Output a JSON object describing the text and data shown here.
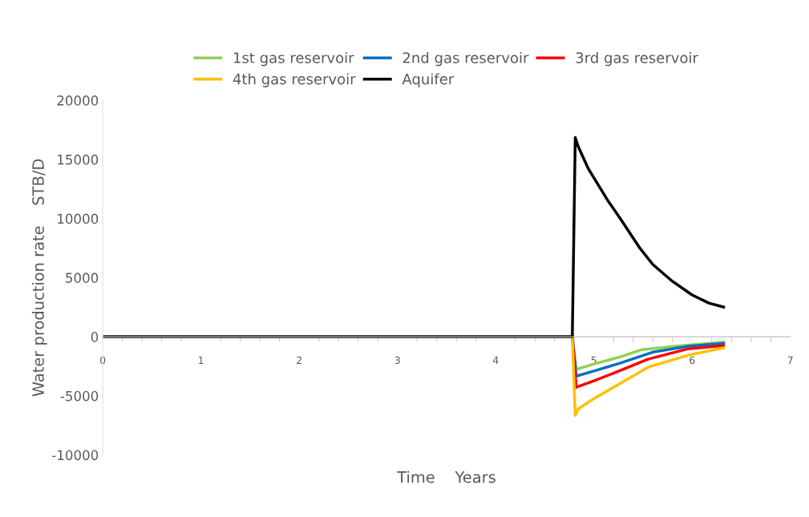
{
  "chart_data": {
    "type": "line",
    "xlabel": "Time    Years",
    "ylabel": "Water production rate    STB/D",
    "xlim": [
      0,
      7
    ],
    "xticks": [
      0,
      1,
      2,
      3,
      4,
      5,
      6,
      7
    ],
    "ylim": [
      -10000,
      20000
    ],
    "yticks": [
      -10000,
      -5000,
      0,
      5000,
      10000,
      15000,
      20000
    ],
    "grid": false,
    "legend": "top",
    "marker": "none",
    "line_style": "solid",
    "series": [
      {
        "name": "1st gas reservoir",
        "color": "#92d050",
        "x": [
          4.78,
          4.82,
          5.0,
          5.27,
          5.49,
          5.82,
          6.32
        ],
        "values": [
          0,
          -2760,
          -2310,
          -1700,
          -1090,
          -810,
          -460
        ]
      },
      {
        "name": "2nd gas reservoir",
        "color": "#0070c0",
        "x": [
          4.78,
          4.82,
          5.0,
          5.27,
          5.6,
          5.96,
          6.32
        ],
        "values": [
          0,
          -3330,
          -2900,
          -2220,
          -1300,
          -810,
          -560
        ]
      },
      {
        "name": "3rd gas reservoir",
        "color": "#ff0000",
        "x": [
          4.78,
          4.82,
          5.0,
          5.27,
          5.55,
          5.96,
          6.32
        ],
        "values": [
          0,
          -4280,
          -3730,
          -2850,
          -1900,
          -1020,
          -750
        ]
      },
      {
        "name": "4th gas reservoir",
        "color": "#ffc000",
        "x": [
          4.78,
          4.81,
          4.84,
          5.0,
          5.27,
          5.55,
          5.96,
          6.32
        ],
        "values": [
          0,
          -6650,
          -6110,
          -5230,
          -3940,
          -2580,
          -1560,
          -950
        ]
      },
      {
        "name": "Aquifer",
        "color": "#000000",
        "x": [
          0,
          4.78,
          4.81,
          4.84,
          4.94,
          5.14,
          5.27,
          5.47,
          5.6,
          5.79,
          6.0,
          6.17,
          6.32
        ],
        "values": [
          0,
          0,
          16860,
          16090,
          14260,
          11540,
          9980,
          7470,
          6110,
          4750,
          3530,
          2850,
          2510
        ]
      }
    ]
  }
}
